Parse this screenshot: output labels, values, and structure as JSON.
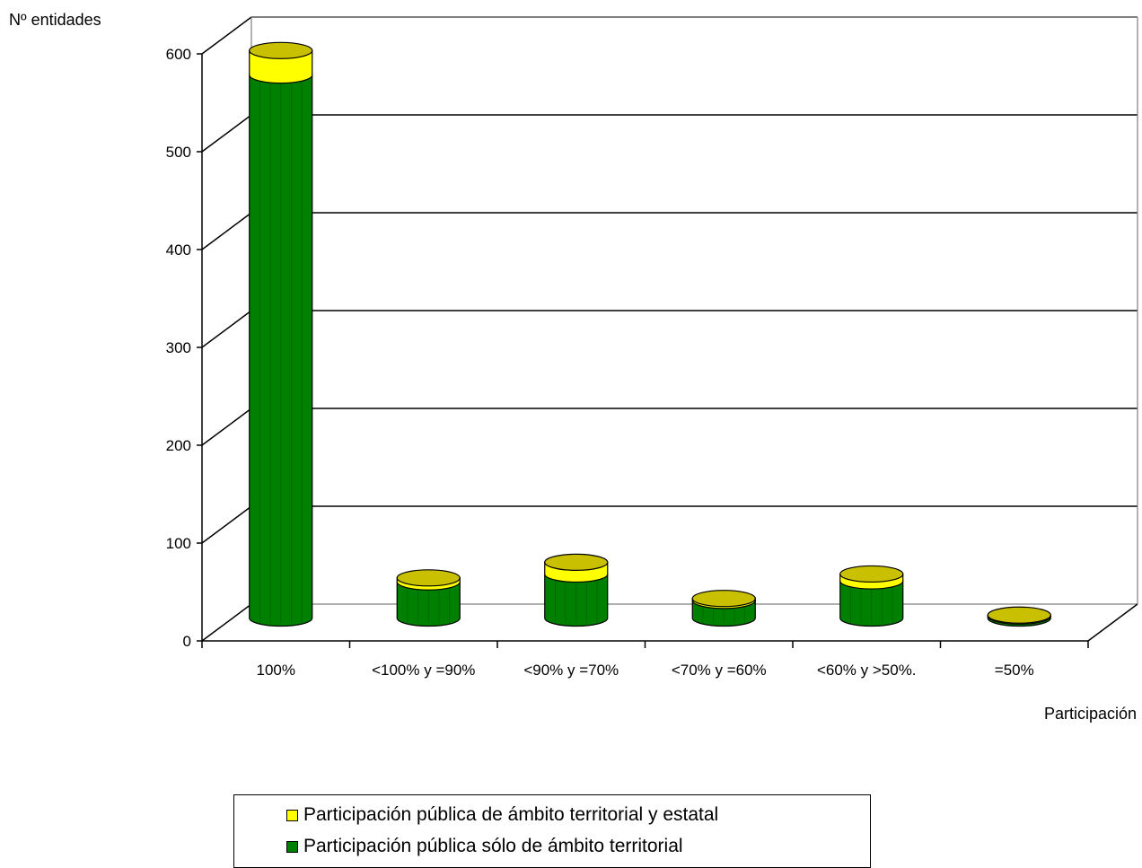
{
  "chart_data": {
    "type": "bar",
    "stacked": true,
    "three_d": true,
    "ylabel": "Nº entidades",
    "xlabel": "Participación",
    "categories": [
      "100%",
      "<100% y =90%",
      "<90% y =70%",
      "<70% y =60%",
      "<60% y >50%.",
      "=50%"
    ],
    "series": [
      {
        "name": "Participación pública sólo de ámbito territorial",
        "color": "#008000",
        "top_color": "#808000",
        "values": [
          555,
          37,
          45,
          18,
          38,
          2
        ]
      },
      {
        "name": "Participación pública de ámbito territorial y estatal",
        "color": "#ffff00",
        "top_color": "#c8c000",
        "values": [
          25,
          4,
          12,
          2,
          7,
          1
        ]
      }
    ],
    "ylim": [
      0,
      600
    ],
    "yticks": [
      0,
      100,
      200,
      300,
      400,
      500,
      600
    ],
    "grid": true,
    "legend_position": "bottom"
  },
  "legend": {
    "item1": "Participación pública de ámbito territorial y estatal",
    "item2": "Participación pública sólo de ámbito territorial"
  }
}
